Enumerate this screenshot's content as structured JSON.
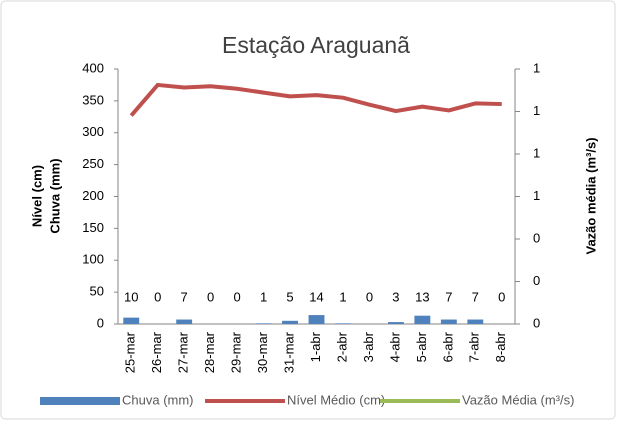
{
  "chart_data": {
    "type": "bar_line",
    "title": "Estação Araguanã",
    "y_label": [
      "Nível (cm)",
      "Chuva (mm)"
    ],
    "y2_label": "Vazão média (m³/s)",
    "categories": [
      "25-mar",
      "26-mar",
      "27-mar",
      "28-mar",
      "29-mar",
      "30-mar",
      "31-mar",
      "1-abr",
      "2-abr",
      "3-abr",
      "4-abr",
      "5-abr",
      "6-abr",
      "7-abr",
      "8-abr"
    ],
    "series": [
      {
        "name": "Chuva (mm)",
        "type": "bar",
        "color": "#4f81bd",
        "values": [
          10,
          0,
          7,
          0,
          0,
          1,
          5,
          14,
          1,
          0,
          3,
          13,
          7,
          7,
          0
        ]
      },
      {
        "name": "Nível Médio (cm)",
        "type": "line",
        "color": "#c0504d",
        "values": [
          327,
          375,
          371,
          373,
          369,
          363,
          357,
          359,
          355,
          344,
          334,
          341,
          335,
          346,
          345
        ]
      },
      {
        "name": "Vazão Média (m³/s)",
        "type": "line",
        "axis": "y2",
        "color": "#9bbb59",
        "values": [
          null,
          null,
          null,
          null,
          null,
          null,
          null,
          null,
          null,
          null,
          null,
          null,
          null,
          null,
          null
        ]
      }
    ],
    "ylim": [
      0,
      400
    ],
    "yticks": [
      0,
      50,
      100,
      150,
      200,
      250,
      300,
      350,
      400
    ],
    "y2lim": [
      0,
      1.2
    ],
    "y2ticks": [
      0,
      {
        "value": 0.2,
        "label": "0"
      },
      {
        "value": 0.4,
        "label": "0"
      },
      {
        "value": 0.6,
        "label": "1"
      },
      {
        "value": 0.8,
        "label": "1"
      },
      {
        "value": 1.0,
        "label": "1"
      },
      {
        "value": 1.2,
        "label": "1"
      }
    ],
    "grid": false,
    "legend": "bottom"
  }
}
